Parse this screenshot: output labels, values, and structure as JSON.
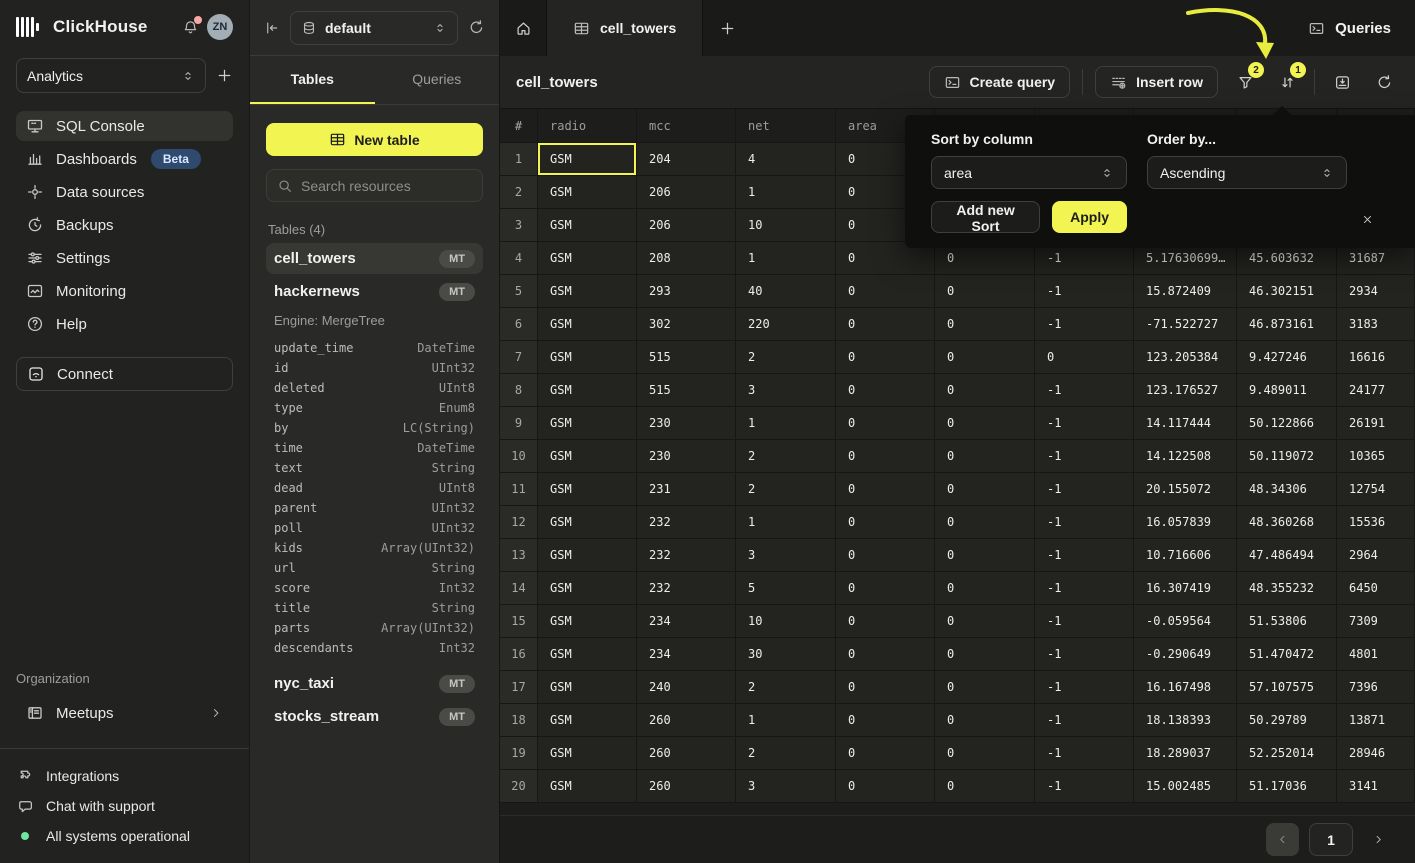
{
  "colors": {
    "accent_yellow": "#f2f452",
    "beta_badge": "#2e4a6e",
    "status_green": "#6ee7a0",
    "notification_dot": "#f9a8a8"
  },
  "sidebar": {
    "logo_text": "ClickHouse",
    "avatar_initials": "ZN",
    "workspace": {
      "value": "Analytics"
    },
    "nav": [
      {
        "label": "SQL Console",
        "icon": "console",
        "active": true
      },
      {
        "label": "Dashboards",
        "icon": "bar-chart",
        "badge": "Beta"
      },
      {
        "label": "Data sources",
        "icon": "hub"
      },
      {
        "label": "Backups",
        "icon": "history"
      },
      {
        "label": "Settings",
        "icon": "sliders"
      },
      {
        "label": "Monitoring",
        "icon": "monitor-wave"
      },
      {
        "label": "Help",
        "icon": "help"
      }
    ],
    "connect_label": "Connect",
    "org_label": "Organization",
    "meetups_label": "Meetups",
    "footer": [
      {
        "label": "Integrations",
        "icon": "puzzle"
      },
      {
        "label": "Chat with support",
        "icon": "chat"
      },
      {
        "label": "All systems operational",
        "icon": "green-dot"
      }
    ]
  },
  "panel": {
    "database": "default",
    "tabs": [
      {
        "label": "Tables",
        "active": true
      },
      {
        "label": "Queries",
        "active": false
      }
    ],
    "new_table_label": "New table",
    "search_placeholder": "Search resources",
    "tables_label": "Tables (4)",
    "tables": [
      {
        "name": "cell_towers",
        "badge": "MT",
        "active": true
      },
      {
        "name": "hackernews",
        "badge": "MT",
        "engine": "Engine: MergeTree",
        "columns": [
          {
            "name": "update_time",
            "type": "DateTime"
          },
          {
            "name": "id",
            "type": "UInt32"
          },
          {
            "name": "deleted",
            "type": "UInt8"
          },
          {
            "name": "type",
            "type": "Enum8"
          },
          {
            "name": "by",
            "type": "LC(String)"
          },
          {
            "name": "time",
            "type": "DateTime"
          },
          {
            "name": "text",
            "type": "String"
          },
          {
            "name": "dead",
            "type": "UInt8"
          },
          {
            "name": "parent",
            "type": "UInt32"
          },
          {
            "name": "poll",
            "type": "UInt32"
          },
          {
            "name": "kids",
            "type": "Array(UInt32)"
          },
          {
            "name": "url",
            "type": "String"
          },
          {
            "name": "score",
            "type": "Int32"
          },
          {
            "name": "title",
            "type": "String"
          },
          {
            "name": "parts",
            "type": "Array(UInt32)"
          },
          {
            "name": "descendants",
            "type": "Int32"
          }
        ]
      },
      {
        "name": "nyc_taxi",
        "badge": "MT"
      },
      {
        "name": "stocks_stream",
        "badge": "MT"
      }
    ]
  },
  "main": {
    "active_tab": "cell_towers",
    "queries_button": "Queries",
    "title": "cell_towers",
    "create_query_label": "Create query",
    "insert_row_label": "Insert row",
    "filter_badge": "2",
    "sort_badge": "1",
    "table": {
      "headers": [
        "#",
        "radio",
        "mcc",
        "net",
        "area",
        "",
        "",
        "",
        "",
        ""
      ],
      "rows": [
        [
          "GSM",
          "204",
          "4",
          "0",
          "",
          "",
          "",
          "",
          ""
        ],
        [
          "GSM",
          "206",
          "1",
          "0",
          "",
          "",
          "",
          "",
          ""
        ],
        [
          "GSM",
          "206",
          "10",
          "0",
          "",
          "",
          "",
          "",
          ""
        ],
        [
          "GSM",
          "208",
          "1",
          "0",
          "0",
          "-1",
          "5.17630699…",
          "45.603632",
          "31687"
        ],
        [
          "GSM",
          "293",
          "40",
          "0",
          "0",
          "-1",
          "15.872409",
          "46.302151",
          "2934"
        ],
        [
          "GSM",
          "302",
          "220",
          "0",
          "0",
          "-1",
          "-71.522727",
          "46.873161",
          "3183"
        ],
        [
          "GSM",
          "515",
          "2",
          "0",
          "0",
          "0",
          "123.205384",
          "9.427246",
          "16616"
        ],
        [
          "GSM",
          "515",
          "3",
          "0",
          "0",
          "-1",
          "123.176527",
          "9.489011",
          "24177"
        ],
        [
          "GSM",
          "230",
          "1",
          "0",
          "0",
          "-1",
          "14.117444",
          "50.122866",
          "26191"
        ],
        [
          "GSM",
          "230",
          "2",
          "0",
          "0",
          "-1",
          "14.122508",
          "50.119072",
          "10365"
        ],
        [
          "GSM",
          "231",
          "2",
          "0",
          "0",
          "-1",
          "20.155072",
          "48.34306",
          "12754"
        ],
        [
          "GSM",
          "232",
          "1",
          "0",
          "0",
          "-1",
          "16.057839",
          "48.360268",
          "15536"
        ],
        [
          "GSM",
          "232",
          "3",
          "0",
          "0",
          "-1",
          "10.716606",
          "47.486494",
          "2964"
        ],
        [
          "GSM",
          "232",
          "5",
          "0",
          "0",
          "-1",
          "16.307419",
          "48.355232",
          "6450"
        ],
        [
          "GSM",
          "234",
          "10",
          "0",
          "0",
          "-1",
          "-0.059564",
          "51.53806",
          "7309"
        ],
        [
          "GSM",
          "234",
          "30",
          "0",
          "0",
          "-1",
          "-0.290649",
          "51.470472",
          "4801"
        ],
        [
          "GSM",
          "240",
          "2",
          "0",
          "0",
          "-1",
          "16.167498",
          "57.107575",
          "7396"
        ],
        [
          "GSM",
          "260",
          "1",
          "0",
          "0",
          "-1",
          "18.138393",
          "50.29789",
          "13871"
        ],
        [
          "GSM",
          "260",
          "2",
          "0",
          "0",
          "-1",
          "18.289037",
          "52.252014",
          "28946"
        ],
        [
          "GSM",
          "260",
          "3",
          "0",
          "0",
          "-1",
          "15.002485",
          "51.17036",
          "3141"
        ]
      ],
      "selected_cell": {
        "row": 0,
        "col": 0
      }
    },
    "pagination": {
      "page": "1"
    }
  },
  "sort_popup": {
    "sort_by_label": "Sort by column",
    "sort_by_value": "area",
    "order_by_label": "Order by...",
    "order_by_value": "Ascending",
    "add_sort_label": "Add new Sort",
    "apply_label": "Apply"
  }
}
